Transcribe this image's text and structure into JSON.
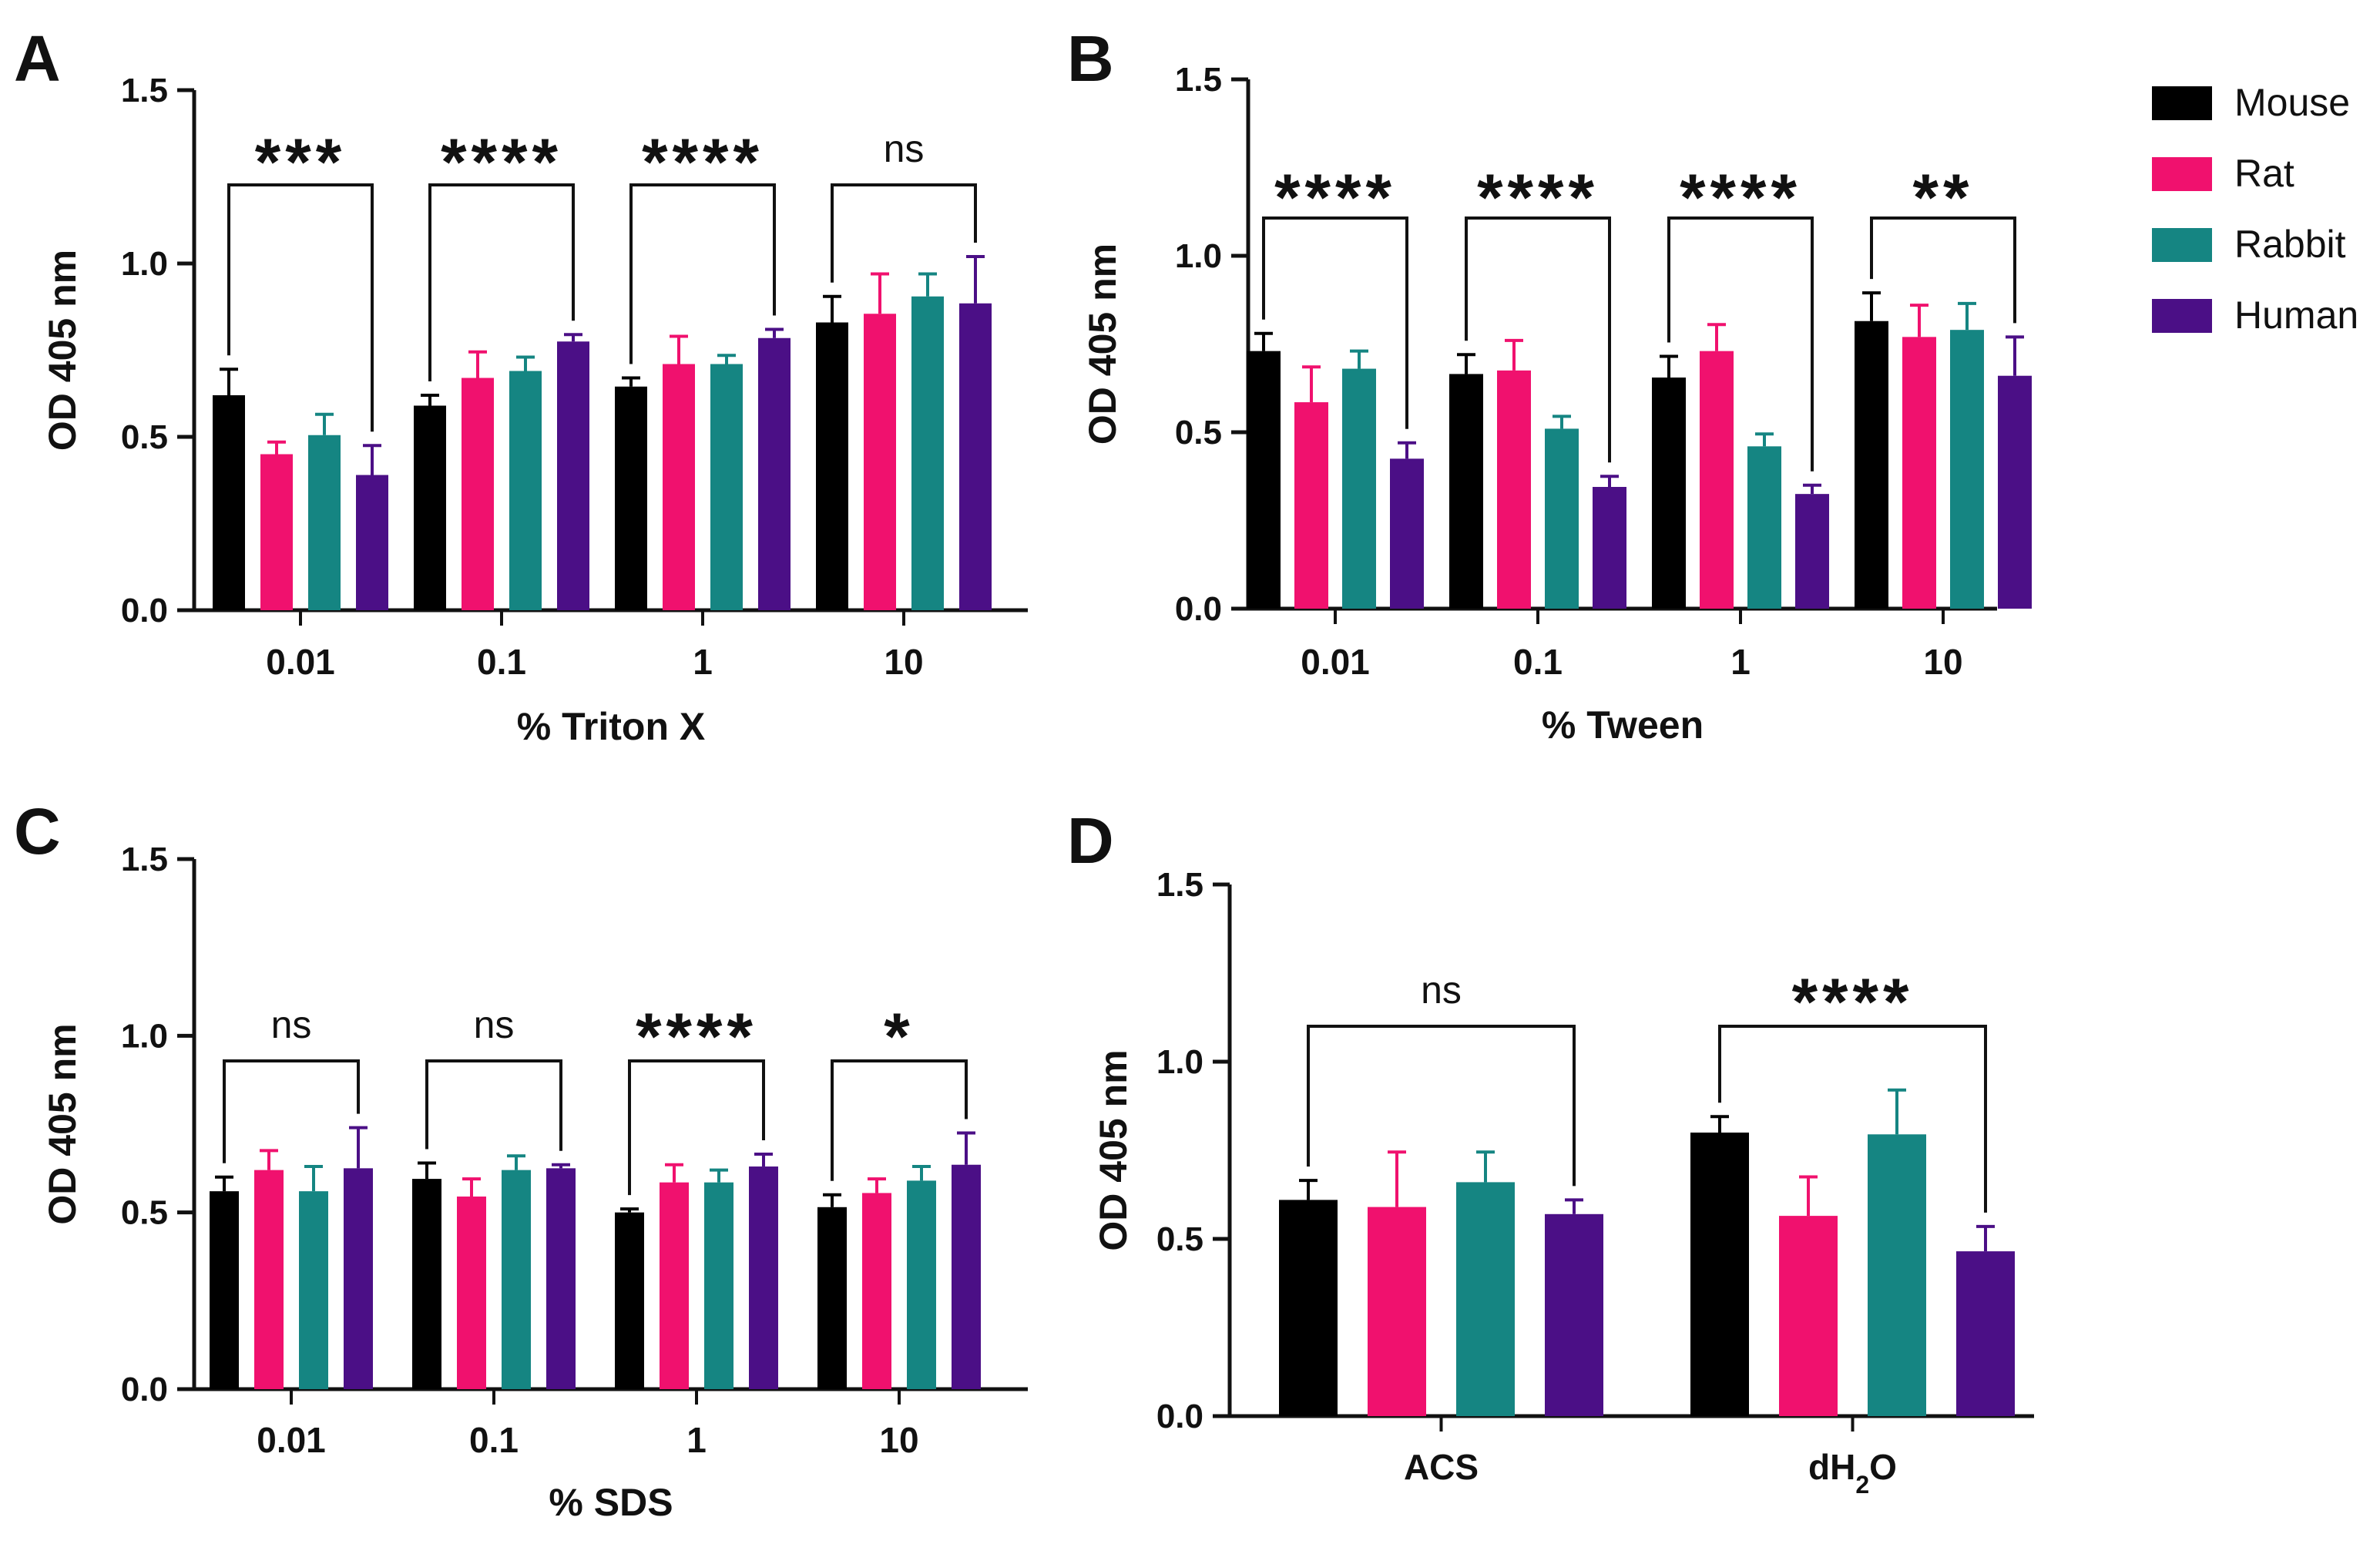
{
  "figure": {
    "legend": [
      "Mouse",
      "Rat",
      "Rabbit",
      "Human"
    ],
    "colors": {
      "Mouse": "#000000",
      "Rat": "#f0116e",
      "Rabbit": "#158582",
      "Human": "#4b0f86"
    }
  },
  "chart_data": [
    {
      "panel": "A",
      "type": "bar",
      "title": "",
      "xlabel": "% Triton X",
      "ylabel": "OD 405 nm",
      "ylim": [
        0,
        1.5
      ],
      "yticks": [
        "0.0",
        "0.5",
        "1.0",
        "1.5"
      ],
      "categories": [
        "0.01",
        "0.1",
        "1",
        "10"
      ],
      "series": [
        {
          "name": "Mouse",
          "values": [
            0.62,
            0.59,
            0.645,
            0.83
          ],
          "errors": [
            0.075,
            0.03,
            0.025,
            0.075
          ]
        },
        {
          "name": "Rat",
          "values": [
            0.45,
            0.67,
            0.71,
            0.855
          ],
          "errors": [
            0.035,
            0.075,
            0.08,
            0.115
          ]
        },
        {
          "name": "Rabbit",
          "values": [
            0.505,
            0.69,
            0.71,
            0.905
          ],
          "errors": [
            0.06,
            0.04,
            0.025,
            0.065
          ]
        },
        {
          "name": "Human",
          "values": [
            0.39,
            0.775,
            0.785,
            0.885
          ],
          "errors": [
            0.085,
            0.02,
            0.025,
            0.135
          ]
        }
      ],
      "significance": [
        "***",
        "****",
        "****",
        "ns"
      ]
    },
    {
      "panel": "B",
      "type": "bar",
      "title": "",
      "xlabel": "%  Tween",
      "ylabel": "OD 405 nm",
      "ylim": [
        0,
        1.5
      ],
      "yticks": [
        "0.0",
        "0.5",
        "1.0",
        "1.5"
      ],
      "categories": [
        "0.01",
        "0.1",
        "1",
        "10"
      ],
      "series": [
        {
          "name": "Mouse",
          "values": [
            0.73,
            0.665,
            0.655,
            0.815
          ],
          "errors": [
            0.05,
            0.055,
            0.06,
            0.08
          ]
        },
        {
          "name": "Rat",
          "values": [
            0.585,
            0.675,
            0.73,
            0.77
          ],
          "errors": [
            0.1,
            0.085,
            0.075,
            0.09
          ]
        },
        {
          "name": "Rabbit",
          "values": [
            0.68,
            0.51,
            0.46,
            0.79
          ],
          "errors": [
            0.05,
            0.035,
            0.035,
            0.075
          ]
        },
        {
          "name": "Human",
          "values": [
            0.425,
            0.345,
            0.325,
            0.66
          ],
          "errors": [
            0.045,
            0.03,
            0.025,
            0.11
          ]
        }
      ],
      "significance": [
        "****",
        "****",
        "****",
        "**"
      ]
    },
    {
      "panel": "C",
      "type": "bar",
      "title": "",
      "xlabel": "%  SDS",
      "ylabel": "OD 405 nm",
      "ylim": [
        0,
        1.5
      ],
      "yticks": [
        "0.0",
        "0.5",
        "1.0",
        "1.5"
      ],
      "categories": [
        "0.01",
        "0.1",
        "1",
        "10"
      ],
      "series": [
        {
          "name": "Mouse",
          "values": [
            0.56,
            0.595,
            0.5,
            0.515
          ],
          "errors": [
            0.04,
            0.045,
            0.01,
            0.035
          ]
        },
        {
          "name": "Rat",
          "values": [
            0.62,
            0.545,
            0.585,
            0.555
          ],
          "errors": [
            0.055,
            0.05,
            0.05,
            0.04
          ]
        },
        {
          "name": "Rabbit",
          "values": [
            0.56,
            0.62,
            0.585,
            0.59
          ],
          "errors": [
            0.07,
            0.04,
            0.035,
            0.04
          ]
        },
        {
          "name": "Human",
          "values": [
            0.625,
            0.625,
            0.63,
            0.635
          ],
          "errors": [
            0.115,
            0.01,
            0.035,
            0.09
          ]
        }
      ],
      "significance": [
        "ns",
        "ns",
        "****",
        "*"
      ]
    },
    {
      "panel": "D",
      "type": "bar",
      "title": "",
      "xlabel": "",
      "ylabel": "OD 405 nm",
      "ylim": [
        0,
        1.5
      ],
      "yticks": [
        "0.0",
        "0.5",
        "1.0",
        "1.5"
      ],
      "categories": [
        "ACS",
        "dH2O"
      ],
      "series": [
        {
          "name": "Mouse",
          "values": [
            0.61,
            0.8
          ],
          "errors": [
            0.055,
            0.045
          ]
        },
        {
          "name": "Rat",
          "values": [
            0.59,
            0.565
          ],
          "errors": [
            0.155,
            0.11
          ]
        },
        {
          "name": "Rabbit",
          "values": [
            0.66,
            0.795
          ],
          "errors": [
            0.085,
            0.125
          ]
        },
        {
          "name": "Human",
          "values": [
            0.57,
            0.465
          ],
          "errors": [
            0.04,
            0.07
          ]
        }
      ],
      "significance": [
        "ns",
        "****"
      ]
    }
  ]
}
